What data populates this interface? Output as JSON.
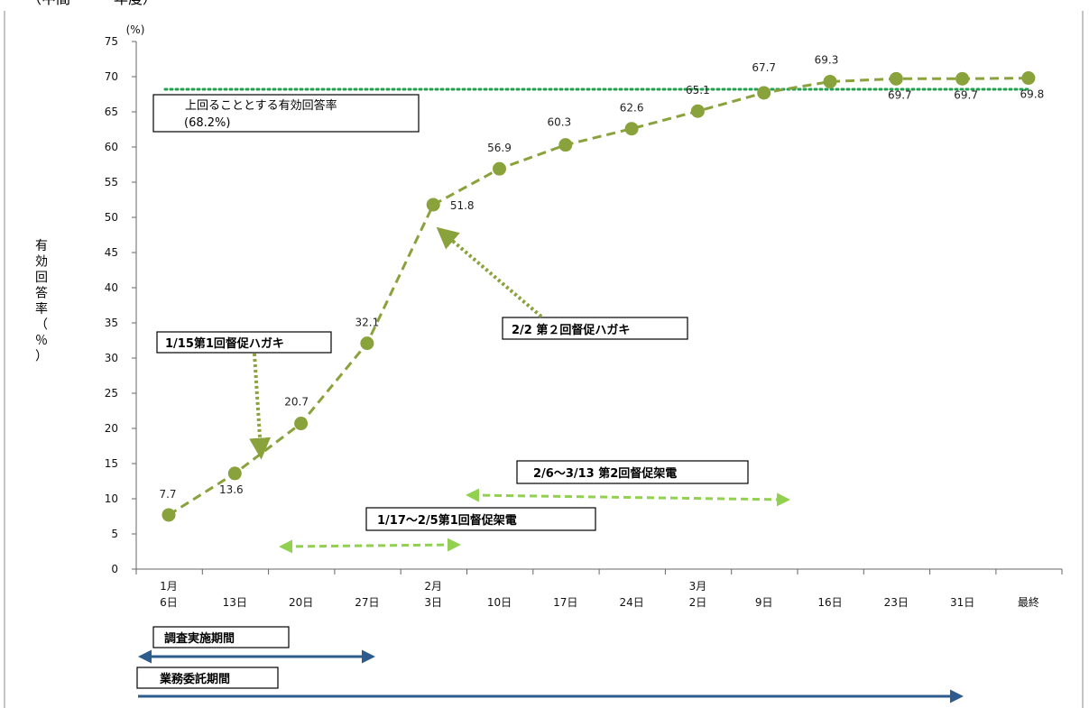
{
  "header_fragment": "（中間・・・年度）",
  "chart_data": {
    "type": "line",
    "y_unit": "(%)",
    "ylabel_chars": [
      "有",
      "効",
      "回",
      "答",
      "率",
      "（",
      "％",
      "）"
    ],
    "ylim": [
      0,
      75
    ],
    "y_ticks": [
      0,
      5,
      10,
      15,
      20,
      25,
      30,
      35,
      40,
      45,
      50,
      55,
      60,
      65,
      70,
      75
    ],
    "categories": [
      [
        "1月",
        "6日"
      ],
      [
        "",
        "13日"
      ],
      [
        "",
        "20日"
      ],
      [
        "",
        "27日"
      ],
      [
        "2月",
        "3日"
      ],
      [
        "",
        "10日"
      ],
      [
        "",
        "17日"
      ],
      [
        "",
        "24日"
      ],
      [
        "3月",
        "2日"
      ],
      [
        "",
        "9日"
      ],
      [
        "",
        "16日"
      ],
      [
        "",
        "23日"
      ],
      [
        "",
        "31日"
      ],
      [
        "",
        "最終"
      ]
    ],
    "series": [
      {
        "values": [
          7.7,
          13.6,
          20.7,
          32.1,
          51.8,
          56.9,
          60.3,
          62.6,
          65.1,
          67.7,
          69.3,
          69.7,
          69.7,
          69.8
        ]
      }
    ],
    "data_labels": [
      "7.7",
      "13.6",
      "20.7",
      "32.1",
      "51.8",
      "56.9",
      "60.3",
      "62.6",
      "65.1",
      "67.7",
      "69.3",
      "69.7",
      "69.7",
      "69.8"
    ],
    "target": {
      "value": 68.2,
      "label_line1": "上回ることとする有効回答率",
      "label_line2": "(68.2%)"
    },
    "grid": false
  },
  "annotations": {
    "postcard1": "1/15第1回督促ハガキ",
    "postcard2": "2/2 第２回督促ハガキ",
    "call1": "1/17～2/5第1回督促架電",
    "call2": "2/6～3/13 第2回督促架電"
  },
  "periods": {
    "survey": "調査実施期間",
    "contract": "業務委託期間"
  },
  "colors": {
    "line": "#8aa23b",
    "marker": "#8aa23b",
    "target": "#22a050",
    "call_arrow": "#92d050",
    "period_arrow": "#2e5b8e"
  }
}
